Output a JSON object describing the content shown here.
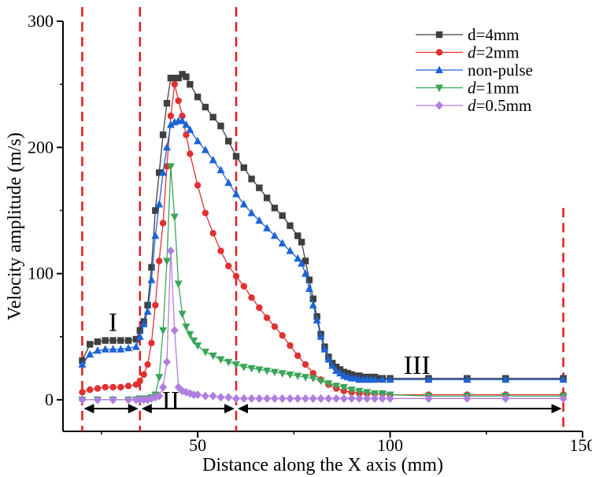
{
  "chart_data": {
    "type": "line",
    "xlabel": "Distance along the X axis (mm)",
    "ylabel": "Velocity amplitude (m/s)",
    "xlim": [
      15,
      150
    ],
    "ylim": [
      -25,
      300
    ],
    "xticks": [
      50,
      100,
      150
    ],
    "yticks": [
      0,
      100,
      200,
      300
    ],
    "legend_position": "top-right",
    "dashed_lines_x": [
      20,
      35,
      60,
      145
    ],
    "regions": [
      {
        "label": "I",
        "x": 28,
        "y": 62
      },
      {
        "label": "II",
        "x": 43,
        "y": 0
      },
      {
        "label": "III",
        "x": 107,
        "y": 28
      }
    ],
    "region_arrows": [
      [
        20,
        35
      ],
      [
        35,
        60
      ],
      [
        60,
        145
      ]
    ],
    "series": [
      {
        "name": "d=4mm",
        "prefix": "d=4mm",
        "suffix": "",
        "color": "#3f3f3f",
        "marker": "square",
        "x": [
          20,
          22,
          24,
          26,
          28,
          30,
          32,
          34,
          35,
          36,
          37,
          38,
          39,
          40,
          41,
          42,
          43,
          44,
          45,
          46,
          47,
          48,
          50,
          52,
          54,
          56,
          58,
          60,
          62,
          64,
          66,
          68,
          70,
          72,
          74,
          76,
          77,
          78,
          79,
          80,
          81,
          82,
          83,
          84,
          85,
          86,
          87,
          88,
          89,
          90,
          91,
          92,
          93,
          94,
          95,
          96,
          97,
          98,
          100,
          110,
          120,
          130,
          145
        ],
        "y": [
          31,
          44,
          46,
          47,
          47,
          47,
          47,
          48,
          55,
          62,
          75,
          105,
          150,
          180,
          210,
          235,
          255,
          255,
          255,
          258,
          256,
          250,
          240,
          232,
          224,
          217,
          205,
          193,
          184,
          175,
          168,
          160,
          152,
          146,
          138,
          130,
          125,
          110,
          95,
          80,
          66,
          52,
          42,
          34,
          29,
          26,
          24,
          22,
          21,
          20,
          19,
          19,
          18,
          18,
          18,
          18,
          17,
          17,
          17,
          17,
          17,
          17,
          17
        ]
      },
      {
        "name": "d=2mm",
        "prefix": "d",
        "suffix": "=2mm",
        "color": "#e03131",
        "marker": "circle",
        "x": [
          20,
          22,
          24,
          26,
          28,
          30,
          32,
          34,
          35,
          36,
          37,
          38,
          39,
          40,
          41,
          42,
          43,
          44,
          45,
          46,
          47,
          48,
          50,
          52,
          54,
          56,
          58,
          60,
          62,
          64,
          66,
          68,
          70,
          72,
          74,
          76,
          78,
          80,
          82,
          84,
          86,
          88,
          90,
          92,
          94,
          96,
          98,
          100,
          110,
          120,
          130,
          145
        ],
        "y": [
          6,
          8,
          9,
          10,
          10,
          10,
          11,
          12,
          15,
          20,
          28,
          45,
          75,
          110,
          140,
          185,
          225,
          250,
          237,
          225,
          210,
          195,
          170,
          148,
          132,
          118,
          106,
          98,
          90,
          81,
          73,
          65,
          58,
          51,
          43,
          35,
          28,
          21,
          16,
          12,
          9,
          7,
          6,
          5,
          5,
          5,
          5,
          4,
          4,
          4,
          4,
          4
        ]
      },
      {
        "name": "non-pulse",
        "prefix": "non-pulse",
        "suffix": "",
        "color": "#1c64d6",
        "marker": "triangle-up",
        "x": [
          20,
          22,
          24,
          26,
          28,
          30,
          32,
          34,
          35,
          36,
          37,
          38,
          39,
          40,
          41,
          42,
          43,
          44,
          45,
          46,
          47,
          48,
          50,
          52,
          54,
          56,
          58,
          60,
          62,
          64,
          66,
          68,
          70,
          72,
          74,
          76,
          77,
          78,
          79,
          80,
          81,
          82,
          83,
          84,
          85,
          86,
          87,
          88,
          89,
          90,
          91,
          92,
          93,
          94,
          95,
          96,
          98,
          100,
          110,
          120,
          130,
          145
        ],
        "y": [
          28,
          36,
          39,
          40,
          40,
          40,
          41,
          42,
          50,
          60,
          70,
          95,
          130,
          155,
          180,
          200,
          218,
          220,
          221,
          221,
          218,
          214,
          205,
          198,
          190,
          182,
          172,
          163,
          155,
          148,
          142,
          136,
          130,
          124,
          118,
          112,
          108,
          100,
          88,
          75,
          63,
          50,
          40,
          32,
          27,
          23,
          21,
          19,
          18,
          17,
          17,
          16,
          16,
          16,
          16,
          16,
          16,
          16,
          16,
          16,
          16,
          16
        ]
      },
      {
        "name": "d=1mm",
        "prefix": "d",
        "suffix": "=1mm",
        "color": "#3aa55a",
        "marker": "triangle-down",
        "x": [
          20,
          24,
          28,
          32,
          34,
          35,
          36,
          37,
          38,
          39,
          40,
          41,
          42,
          43,
          44,
          45,
          46,
          47,
          48,
          49,
          50,
          52,
          54,
          56,
          58,
          60,
          62,
          64,
          66,
          68,
          70,
          72,
          74,
          76,
          78,
          80,
          82,
          84,
          86,
          88,
          90,
          92,
          94,
          96,
          98,
          100,
          110,
          120,
          130,
          145
        ],
        "y": [
          0,
          0,
          0,
          0,
          0,
          1,
          1,
          1,
          2,
          4,
          18,
          55,
          110,
          185,
          145,
          92,
          68,
          58,
          52,
          47,
          43,
          38,
          35,
          32,
          30,
          28,
          26,
          25,
          24,
          23,
          22,
          21,
          20,
          19,
          18,
          17,
          15,
          13,
          11,
          10,
          8,
          7,
          6,
          5,
          5,
          4,
          3,
          3,
          3,
          3
        ]
      },
      {
        "name": "d=0.5mm",
        "prefix": "d",
        "suffix": "=0.5mm",
        "color": "#b07ee0",
        "marker": "diamond",
        "x": [
          20,
          24,
          28,
          32,
          34,
          35,
          36,
          37,
          38,
          39,
          40,
          41,
          42,
          43,
          44,
          45,
          46,
          47,
          48,
          49,
          50,
          52,
          54,
          56,
          58,
          60,
          62,
          64,
          66,
          68,
          70,
          72,
          74,
          76,
          78,
          80,
          82,
          84,
          86,
          88,
          90,
          92,
          94,
          96,
          98,
          100,
          110,
          120,
          130,
          145
        ],
        "y": [
          0,
          0,
          0,
          0,
          0,
          0,
          0,
          0,
          1,
          2,
          3,
          10,
          30,
          118,
          55,
          10,
          7,
          6,
          5,
          4,
          4,
          3,
          3,
          2,
          2,
          1,
          1,
          1,
          1,
          1,
          1,
          1,
          1,
          1,
          1,
          1,
          1,
          1,
          1,
          1,
          1,
          1,
          1,
          1,
          1,
          1,
          1,
          1,
          1,
          1
        ]
      }
    ]
  }
}
